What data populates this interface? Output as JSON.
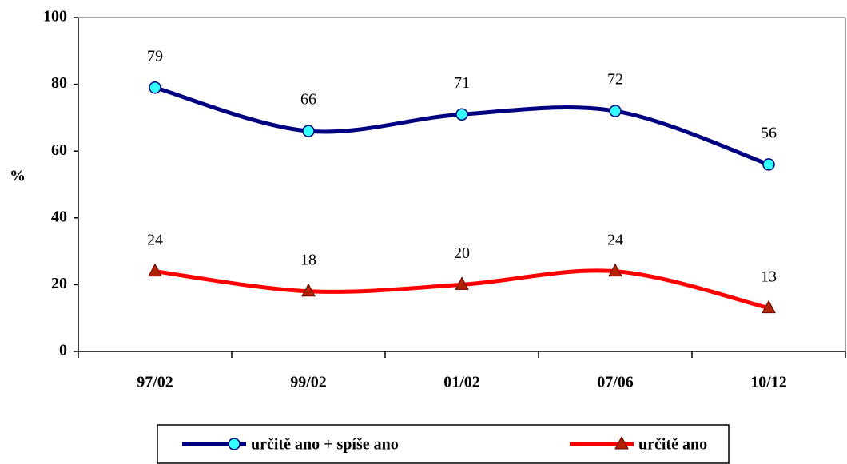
{
  "chart_data": {
    "type": "line",
    "categories": [
      "97/02",
      "99/02",
      "01/02",
      "07/06",
      "10/12"
    ],
    "ylabel": "%",
    "ylim": [
      0,
      100
    ],
    "yticks": [
      0,
      20,
      40,
      60,
      80,
      100
    ],
    "legend": "bottom",
    "series": [
      {
        "name": "určitě ano + spíše ano",
        "color": "#000080",
        "marker_color": "#33ffff",
        "marker": "circle",
        "values": [
          79,
          66,
          71,
          72,
          56
        ]
      },
      {
        "name": "určitě ano",
        "color": "#ff0000",
        "marker_color": "#b22200",
        "marker": "triangle",
        "values": [
          24,
          18,
          20,
          24,
          13
        ]
      }
    ]
  }
}
